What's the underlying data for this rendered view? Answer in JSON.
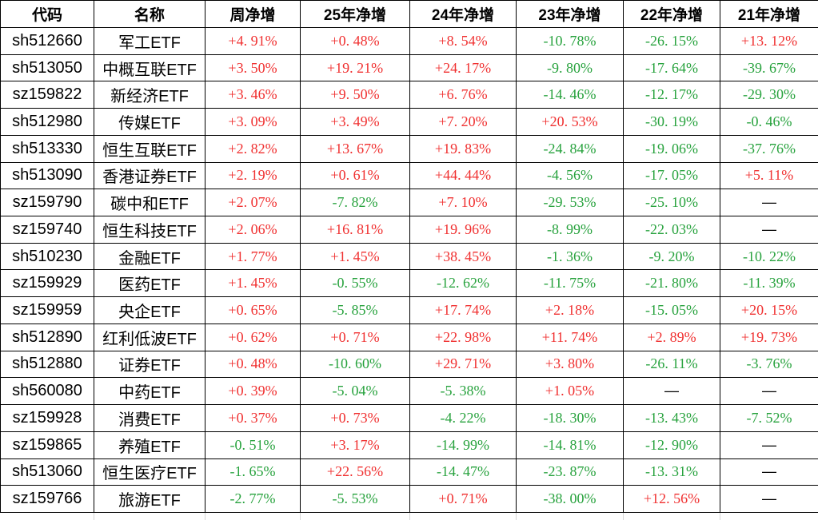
{
  "colors": {
    "positive": "#f03030",
    "negative": "#27a23d",
    "missing": "#000000"
  },
  "table": {
    "columns": [
      "代码",
      "名称",
      "周净增",
      "25年净增",
      "24年净增",
      "23年净增",
      "22年净增",
      "21年净增"
    ],
    "rows": [
      {
        "code": "sh512660",
        "name": "军工ETF",
        "values": [
          "+4. 91%",
          "+0. 48%",
          "+8. 54%",
          "-10. 78%",
          "-26. 15%",
          "+13. 12%"
        ]
      },
      {
        "code": "sh513050",
        "name": "中概互联ETF",
        "values": [
          "+3. 50%",
          "+19. 21%",
          "+24. 17%",
          "-9. 80%",
          "-17. 64%",
          "-39. 67%"
        ]
      },
      {
        "code": "sz159822",
        "name": "新经济ETF",
        "values": [
          "+3. 46%",
          "+9. 50%",
          "+6. 76%",
          "-14. 46%",
          "-12. 17%",
          "-29. 30%"
        ]
      },
      {
        "code": "sh512980",
        "name": "传媒ETF",
        "values": [
          "+3. 09%",
          "+3. 49%",
          "+7. 20%",
          "+20. 53%",
          "-30. 19%",
          "-0. 46%"
        ]
      },
      {
        "code": "sh513330",
        "name": "恒生互联ETF",
        "values": [
          "+2. 82%",
          "+13. 67%",
          "+19. 83%",
          "-24. 84%",
          "-19. 06%",
          "-37. 76%"
        ]
      },
      {
        "code": "sh513090",
        "name": "香港证券ETF",
        "values": [
          "+2. 19%",
          "+0. 61%",
          "+44. 44%",
          "-4. 56%",
          "-17. 05%",
          "+5. 11%"
        ]
      },
      {
        "code": "sz159790",
        "name": "碳中和ETF",
        "values": [
          "+2. 07%",
          "-7. 82%",
          "+7. 10%",
          "-29. 53%",
          "-25. 10%",
          "—"
        ]
      },
      {
        "code": "sz159740",
        "name": "恒生科技ETF",
        "values": [
          "+2. 06%",
          "+16. 81%",
          "+19. 96%",
          "-8. 99%",
          "-22. 03%",
          "—"
        ]
      },
      {
        "code": "sh510230",
        "name": "金融ETF",
        "values": [
          "+1. 77%",
          "+1. 45%",
          "+38. 45%",
          "-1. 36%",
          "-9. 20%",
          "-10. 22%"
        ]
      },
      {
        "code": "sz159929",
        "name": "医药ETF",
        "values": [
          "+1. 45%",
          "-0. 55%",
          "-12. 62%",
          "-11. 75%",
          "-21. 80%",
          "-11. 39%"
        ]
      },
      {
        "code": "sz159959",
        "name": "央企ETF",
        "values": [
          "+0. 65%",
          "-5. 85%",
          "+17. 74%",
          "+2. 18%",
          "-15. 05%",
          "+20. 15%"
        ]
      },
      {
        "code": "sh512890",
        "name": "红利低波ETF",
        "values": [
          "+0. 62%",
          "+0. 71%",
          "+22. 98%",
          "+11. 74%",
          "+2. 89%",
          "+19. 73%"
        ]
      },
      {
        "code": "sh512880",
        "name": "证券ETF",
        "values": [
          "+0. 48%",
          "-10. 60%",
          "+29. 71%",
          "+3. 80%",
          "-26. 11%",
          "-3. 76%"
        ]
      },
      {
        "code": "sh560080",
        "name": "中药ETF",
        "values": [
          "+0. 39%",
          "-5. 04%",
          "-5. 38%",
          "+1. 05%",
          "—",
          "—"
        ]
      },
      {
        "code": "sz159928",
        "name": "消费ETF",
        "values": [
          "+0. 37%",
          "+0. 73%",
          "-4. 22%",
          "-18. 30%",
          "-13. 43%",
          "-7. 52%"
        ]
      },
      {
        "code": "sz159865",
        "name": "养殖ETF",
        "values": [
          "-0. 51%",
          "+3. 17%",
          "-14. 99%",
          "-14. 81%",
          "-12. 90%",
          "—"
        ]
      },
      {
        "code": "sh513060",
        "name": "恒生医疗ETF",
        "values": [
          "-1. 65%",
          "+22. 56%",
          "-14. 47%",
          "-23. 87%",
          "-13. 31%",
          "—"
        ]
      },
      {
        "code": "sz159766",
        "name": "旅游ETF",
        "values": [
          "-2. 77%",
          "-5. 53%",
          "+0. 71%",
          "-38. 00%",
          "+12. 56%",
          "—"
        ]
      }
    ]
  }
}
